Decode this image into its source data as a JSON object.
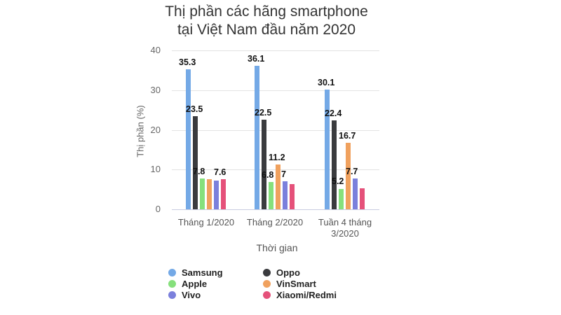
{
  "chart_data": {
    "type": "bar",
    "title": "Thị phần các hãng smartphone tại Việt Nam đầu năm 2020",
    "title_lines": [
      "Thị phần các hãng smartphone",
      "tại Việt Nam đầu năm 2020"
    ],
    "xlabel": "Thời gian",
    "ylabel": "Thị phần (%)",
    "ylim": [
      0,
      40
    ],
    "yticks": [
      0,
      10,
      20,
      30,
      40
    ],
    "grid": true,
    "legend_position": "bottom",
    "categories": [
      "Tháng 1/2020",
      "Tháng 2/2020",
      "Tuần 4 tháng 3/2020"
    ],
    "series": [
      {
        "name": "Samsung",
        "color": "#74a9e6",
        "values": [
          35.3,
          36.1,
          30.1
        ],
        "labels": [
          "35.3",
          "36.1",
          "30.1"
        ]
      },
      {
        "name": "Oppo",
        "color": "#3a3b3e",
        "values": [
          23.5,
          22.5,
          22.4
        ],
        "labels": [
          "23.5",
          "22.5",
          "22.4"
        ]
      },
      {
        "name": "Apple",
        "color": "#86e07c",
        "values": [
          7.8,
          6.8,
          5.2
        ],
        "labels": [
          "7.8",
          "6.8",
          "5.2"
        ]
      },
      {
        "name": "VinSmart",
        "color": "#f0a15e",
        "values": [
          7.5,
          11.2,
          16.7
        ],
        "labels": [
          "",
          "11.2",
          "16.7"
        ]
      },
      {
        "name": "Vivo",
        "color": "#7b80dc",
        "values": [
          7.3,
          7.0,
          7.7
        ],
        "labels": [
          "",
          "7",
          "7.7"
        ]
      },
      {
        "name": "Xiaomi/Redmi",
        "color": "#e5517a",
        "values": [
          7.6,
          6.3,
          5.3
        ],
        "labels": [
          "7.6",
          "",
          ""
        ]
      }
    ]
  },
  "legend": {
    "left": [
      "Samsung",
      "Apple",
      "Vivo"
    ],
    "right": [
      "Oppo",
      "VinSmart",
      "Xiaomi/Redmi"
    ]
  }
}
